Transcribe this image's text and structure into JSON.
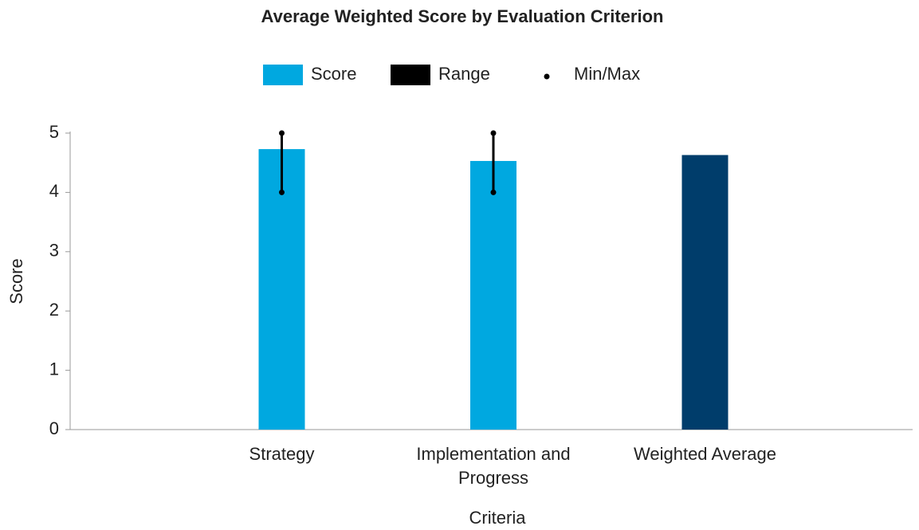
{
  "chart_data": {
    "type": "bar",
    "title": "Average Weighted Score by Evaluation Criterion",
    "x_label": "Criteria",
    "y_label": "Score",
    "categories": [
      "Strategy",
      "Implementation and Progress",
      "Weighted Average"
    ],
    "values": [
      4.73,
      4.53,
      4.63
    ],
    "colors": [
      "#00a8e0",
      "#00a8e0",
      "#003d6b"
    ],
    "min": [
      4,
      4,
      null
    ],
    "max": [
      5,
      5,
      null
    ],
    "range_color": "#000000",
    "legend": [
      {
        "name": "Score",
        "color": "#00a8e0"
      },
      {
        "name": "Range",
        "color": "#000000"
      },
      {
        "name": "Min/Max",
        "color": "#000000"
      }
    ],
    "ylim": [
      0,
      5
    ],
    "yticks": [
      0,
      1,
      2,
      3,
      4,
      5
    ],
    "grid": false
  }
}
